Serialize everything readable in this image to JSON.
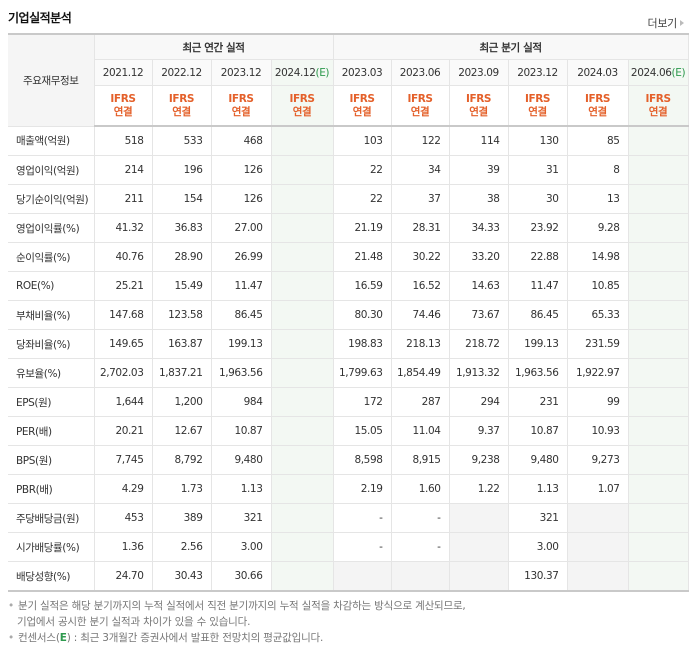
{
  "title": "기업실적분석",
  "more_label": "더보기",
  "header": {
    "row_label": "주요재무정보",
    "annual_group": "최근 연간 실적",
    "quarter_group": "최근 분기 실적",
    "annual_periods": [
      {
        "label": "2021.12",
        "est": ""
      },
      {
        "label": "2022.12",
        "est": ""
      },
      {
        "label": "2023.12",
        "est": ""
      },
      {
        "label": "2024.12",
        "est": "(E)"
      }
    ],
    "quarter_periods": [
      {
        "label": "2023.03",
        "est": ""
      },
      {
        "label": "2023.06",
        "est": ""
      },
      {
        "label": "2023.09",
        "est": ""
      },
      {
        "label": "2023.12",
        "est": ""
      },
      {
        "label": "2024.03",
        "est": ""
      },
      {
        "label": "2024.06",
        "est": "(E)"
      }
    ],
    "basis_line1": "IFRS",
    "basis_line2": "연결"
  },
  "rows": [
    {
      "label": "매출액(억원)",
      "annual": [
        "518",
        "533",
        "468",
        ""
      ],
      "quarter": [
        "103",
        "122",
        "114",
        "130",
        "85",
        ""
      ]
    },
    {
      "label": "영업이익(억원)",
      "annual": [
        "214",
        "196",
        "126",
        ""
      ],
      "quarter": [
        "22",
        "34",
        "39",
        "31",
        "8",
        ""
      ]
    },
    {
      "label": "당기순이익(억원)",
      "annual": [
        "211",
        "154",
        "126",
        ""
      ],
      "quarter": [
        "22",
        "37",
        "38",
        "30",
        "13",
        ""
      ]
    },
    {
      "label": "영업이익률(%)",
      "annual": [
        "41.32",
        "36.83",
        "27.00",
        ""
      ],
      "quarter": [
        "21.19",
        "28.31",
        "34.33",
        "23.92",
        "9.28",
        ""
      ]
    },
    {
      "label": "순이익률(%)",
      "annual": [
        "40.76",
        "28.90",
        "26.99",
        ""
      ],
      "quarter": [
        "21.48",
        "30.22",
        "33.20",
        "22.88",
        "14.98",
        ""
      ]
    },
    {
      "label": "ROE(%)",
      "annual": [
        "25.21",
        "15.49",
        "11.47",
        ""
      ],
      "quarter": [
        "16.59",
        "16.52",
        "14.63",
        "11.47",
        "10.85",
        ""
      ]
    },
    {
      "label": "부채비율(%)",
      "annual": [
        "147.68",
        "123.58",
        "86.45",
        ""
      ],
      "quarter": [
        "80.30",
        "74.46",
        "73.67",
        "86.45",
        "65.33",
        ""
      ]
    },
    {
      "label": "당좌비율(%)",
      "annual": [
        "149.65",
        "163.87",
        "199.13",
        ""
      ],
      "quarter": [
        "198.83",
        "218.13",
        "218.72",
        "199.13",
        "231.59",
        ""
      ]
    },
    {
      "label": "유보율(%)",
      "annual": [
        "2,702.03",
        "1,837.21",
        "1,963.56",
        ""
      ],
      "quarter": [
        "1,799.63",
        "1,854.49",
        "1,913.32",
        "1,963.56",
        "1,922.97",
        ""
      ]
    },
    {
      "label": "EPS(원)",
      "annual": [
        "1,644",
        "1,200",
        "984",
        ""
      ],
      "quarter": [
        "172",
        "287",
        "294",
        "231",
        "99",
        ""
      ]
    },
    {
      "label": "PER(배)",
      "annual": [
        "20.21",
        "12.67",
        "10.87",
        ""
      ],
      "quarter": [
        "15.05",
        "11.04",
        "9.37",
        "10.87",
        "10.93",
        ""
      ]
    },
    {
      "label": "BPS(원)",
      "annual": [
        "7,745",
        "8,792",
        "9,480",
        ""
      ],
      "quarter": [
        "8,598",
        "8,915",
        "9,238",
        "9,480",
        "9,273",
        ""
      ]
    },
    {
      "label": "PBR(배)",
      "annual": [
        "4.29",
        "1.73",
        "1.13",
        ""
      ],
      "quarter": [
        "2.19",
        "1.60",
        "1.22",
        "1.13",
        "1.07",
        ""
      ]
    },
    {
      "label": "주당배당금(원)",
      "annual": [
        "453",
        "389",
        "321",
        ""
      ],
      "quarter": [
        "-",
        "-",
        "",
        "321",
        "",
        ""
      ]
    },
    {
      "label": "시가배당률(%)",
      "annual": [
        "1.36",
        "2.56",
        "3.00",
        ""
      ],
      "quarter": [
        "-",
        "-",
        "",
        "3.00",
        "",
        ""
      ]
    },
    {
      "label": "배당성향(%)",
      "annual": [
        "24.70",
        "30.43",
        "30.66",
        ""
      ],
      "quarter": [
        "",
        "",
        "",
        "130.37",
        "",
        ""
      ]
    }
  ],
  "notes": {
    "line1": "분기 실적은 해당 분기까지의 누적 실적에서 직전 분기까지의 누적 실적을 차감하는 방식으로 계산되므로,",
    "line2": "기업에서 공시한 분기 실적과 차이가 있을 수 있습니다.",
    "line3_prefix": "컨센서스(",
    "line3_e": "E",
    "line3_suffix": ") : 최근 3개월간 증권사에서 발표한 전망치의 평균값입니다."
  },
  "colors": {
    "ifrs": "#e4602a",
    "estimate": "#2e9a4e",
    "estimate_bg": "#f3f8f3"
  }
}
